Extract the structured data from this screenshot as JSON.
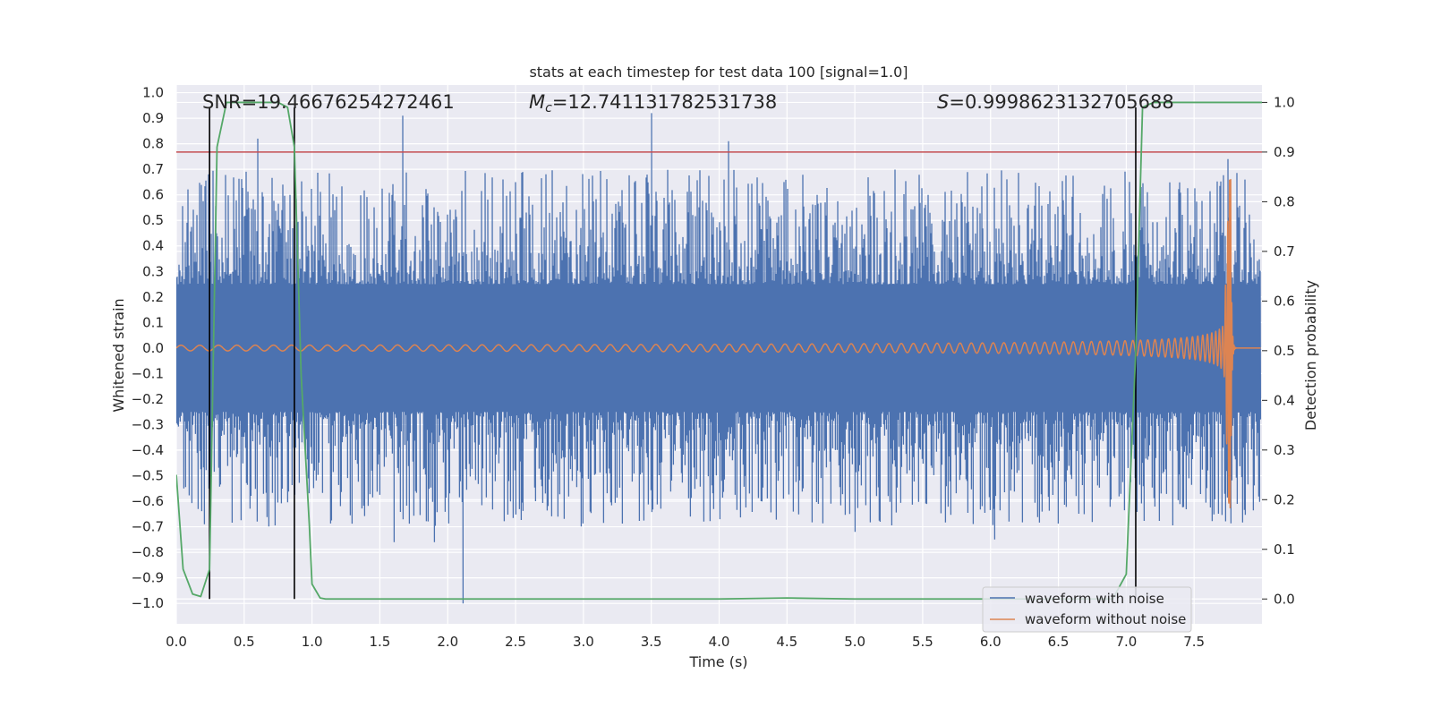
{
  "chart_data": {
    "type": "line",
    "title": "stats at each timestep for test data 100 [signal=1.0]",
    "xlabel": "Time (s)",
    "ylabel": "Whitened strain",
    "ylabel_right": "Detection probability",
    "xlim": [
      0.0,
      8.0
    ],
    "ylim": [
      -1.08,
      1.03
    ],
    "ylim_right": [
      -0.05,
      1.035
    ],
    "xticks": [
      "0.0",
      "0.5",
      "1.0",
      "1.5",
      "2.0",
      "2.5",
      "3.0",
      "3.5",
      "4.0",
      "4.5",
      "5.0",
      "5.5",
      "6.0",
      "6.5",
      "7.0",
      "7.5"
    ],
    "yticks": [
      "1.0",
      "0.9",
      "0.8",
      "0.7",
      "0.6",
      "0.5",
      "0.4",
      "0.3",
      "0.2",
      "0.1",
      "0.0",
      "−0.1",
      "−0.2",
      "−0.3",
      "−0.4",
      "−0.5",
      "−0.6",
      "−0.7",
      "−0.8",
      "−0.9",
      "−1.0"
    ],
    "yticks_right": [
      "1.0",
      "0.9",
      "0.8",
      "0.7",
      "0.6",
      "0.5",
      "0.4",
      "0.3",
      "0.2",
      "0.1",
      "0.0"
    ],
    "grid": true,
    "legend_position": "lower-right",
    "annotations": {
      "snr": "SNR=19.46676254272461",
      "mc_symbol": "M",
      "mc_sub": "c",
      "mc_value": "=12.741131782531738",
      "s_symbol": "S",
      "s_value": "=0.9998623132705688"
    },
    "threshold_line": {
      "axis": "right",
      "value": 0.9,
      "color": "#c44e52"
    },
    "vertical_markers": [
      0.245,
      0.87,
      7.07
    ],
    "series": [
      {
        "name": "waveform with noise",
        "color": "#4c72b0",
        "axis": "left",
        "description": "whitened strain with noise, amplitude roughly ±0.7, spikes to 0.92 / −1.0",
        "peaks": [
          {
            "t": 1.67,
            "v": 0.91
          },
          {
            "t": 3.5,
            "v": 0.92
          },
          {
            "t": 0.6,
            "v": 0.82
          },
          {
            "t": 4.07,
            "v": 0.81
          },
          {
            "t": 2.11,
            "v": -1.0
          },
          {
            "t": 0.24,
            "v": 0.68
          },
          {
            "t": 7.75,
            "v": 0.74
          },
          {
            "t": 5.0,
            "v": -0.72
          },
          {
            "t": 6.03,
            "v": -0.75
          },
          {
            "t": 1.6,
            "v": -0.76
          },
          {
            "t": 1.9,
            "v": -0.76
          }
        ]
      },
      {
        "name": "waveform without noise",
        "color": "#dd8452",
        "axis": "left",
        "description": "chirp signal, amplitude grows from 0.02 to 0.66 at merger near t=7.76s, ringdown to ~0 by 7.8s"
      },
      {
        "name": "detection probability",
        "color": "#55a868",
        "axis": "right",
        "x": [
          0.0,
          0.05,
          0.12,
          0.18,
          0.245,
          0.3,
          0.37,
          0.45,
          0.55,
          0.65,
          0.75,
          0.82,
          0.87,
          0.92,
          0.98,
          1.0,
          1.06,
          1.1,
          1.2,
          2.0,
          3.0,
          4.0,
          4.5,
          5.0,
          6.0,
          6.5,
          6.9,
          7.0,
          7.07,
          7.12,
          7.2,
          7.5,
          8.0
        ],
        "values": [
          0.25,
          0.06,
          0.01,
          0.005,
          0.06,
          0.91,
          1.0,
          1.0,
          1.0,
          1.0,
          1.0,
          0.99,
          0.91,
          0.45,
          0.15,
          0.03,
          0.002,
          0.0,
          0.0,
          0.0,
          0.0,
          0.0,
          0.002,
          0.0,
          0.0,
          0.0,
          0.0,
          0.05,
          0.5,
          0.99,
          1.0,
          1.0,
          1.0
        ]
      }
    ]
  }
}
